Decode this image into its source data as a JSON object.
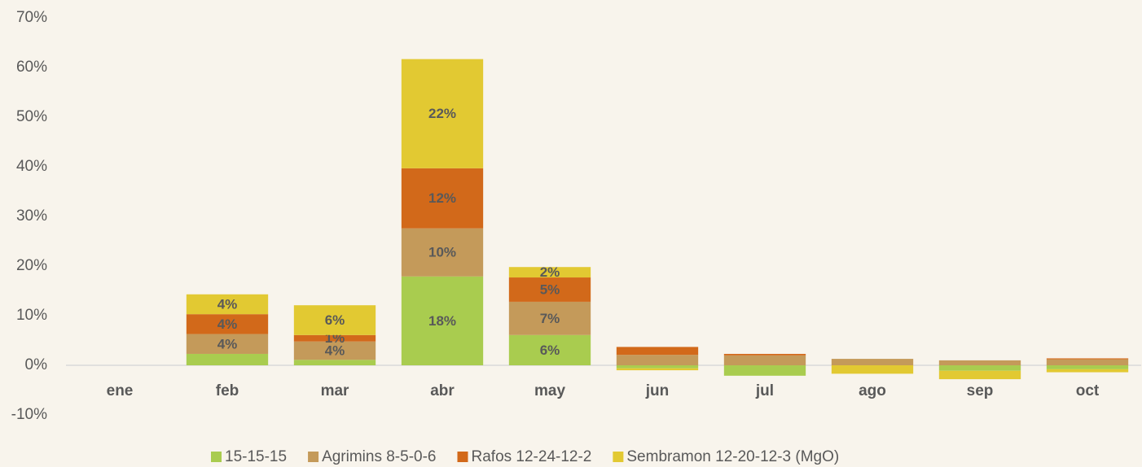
{
  "chart_data": {
    "type": "stacked_bar",
    "categories": [
      "ene",
      "feb",
      "mar",
      "abr",
      "may",
      "jun",
      "jul",
      "ago",
      "sep",
      "oct"
    ],
    "series": [
      {
        "name": "15-15-15",
        "color": "#a9cc4f",
        "values": [
          0,
          2.3,
          1.1,
          17.9,
          6.1,
          -0.6,
          -2.1,
          0,
          -1.1,
          -0.8
        ],
        "value_labels": [
          null,
          null,
          null,
          "18%",
          "6%",
          null,
          null,
          null,
          null,
          null
        ]
      },
      {
        "name": "Agrimins 8-5-0-6",
        "color": "#c49a5a",
        "values": [
          0,
          4,
          3.7,
          9.7,
          6.7,
          2.1,
          2.0,
          1.3,
          1.0,
          1.2
        ],
        "value_labels": [
          null,
          "4%",
          "4%",
          "10%",
          "7%",
          null,
          null,
          null,
          null,
          null
        ]
      },
      {
        "name": "Rafos 12-24-12-2",
        "color": "#d2691a",
        "values": [
          0,
          4,
          1.3,
          12.1,
          4.9,
          1.6,
          0.3,
          0,
          0,
          0.2
        ],
        "value_labels": [
          null,
          "4%",
          "1%",
          "12%",
          "5%",
          null,
          null,
          null,
          null,
          null
        ]
      },
      {
        "name": "Sembramon 12-20-12-3 (MgO)",
        "color": "#e2c932",
        "values": [
          0,
          4,
          6.0,
          22,
          2.1,
          -0.4,
          0,
          -1.7,
          -1.7,
          -0.6
        ],
        "value_labels": [
          null,
          "4%",
          "6%",
          "22%",
          "2%",
          null,
          null,
          null,
          null,
          null
        ]
      }
    ],
    "ylim": [
      -10,
      70
    ],
    "yticks": [
      {
        "value": -10,
        "label": "-10%"
      },
      {
        "value": 0,
        "label": "0%"
      },
      {
        "value": 10,
        "label": "10%"
      },
      {
        "value": 20,
        "label": "20%"
      },
      {
        "value": 30,
        "label": "30%"
      },
      {
        "value": 40,
        "label": "40%"
      },
      {
        "value": 50,
        "label": "50%"
      },
      {
        "value": 60,
        "label": "60%"
      },
      {
        "value": 70,
        "label": "70%"
      }
    ],
    "legend": "bottom"
  }
}
